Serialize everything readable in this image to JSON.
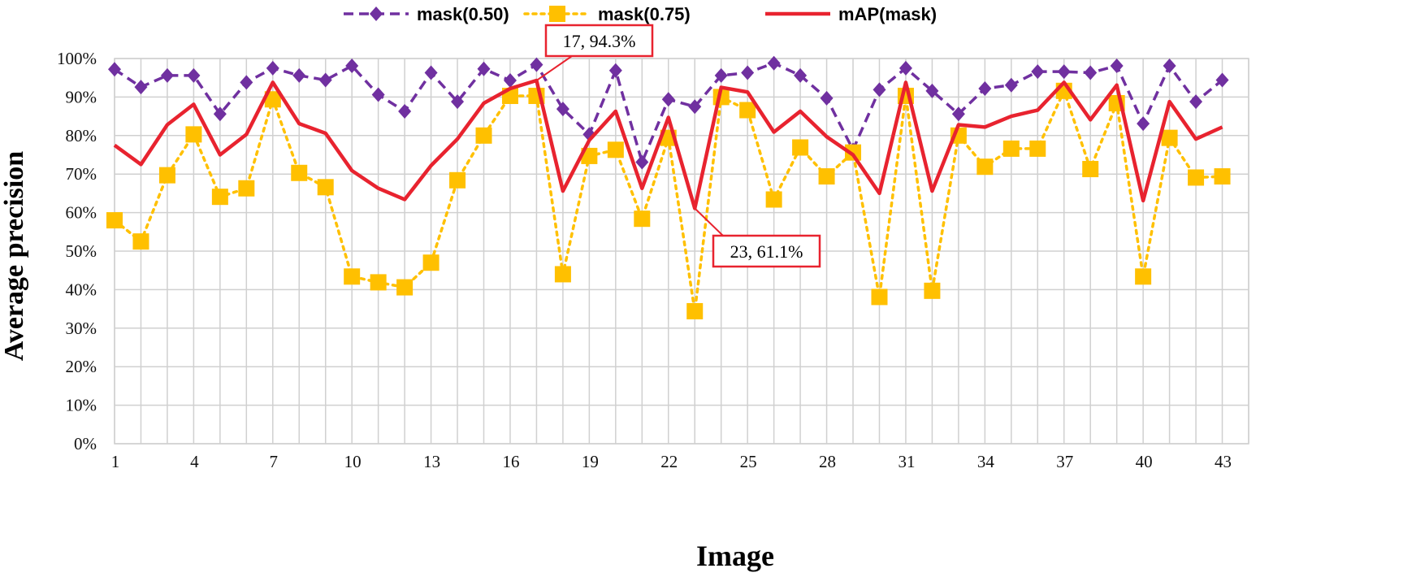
{
  "chart_data": {
    "type": "line",
    "title": "",
    "xlabel": "Image",
    "ylabel": "Average precision",
    "ylim": [
      0,
      100
    ],
    "y_ticks": [
      "0%",
      "10%",
      "20%",
      "30%",
      "40%",
      "50%",
      "60%",
      "70%",
      "80%",
      "90%",
      "100%"
    ],
    "x": [
      1,
      2,
      3,
      4,
      5,
      6,
      7,
      8,
      9,
      10,
      11,
      12,
      13,
      14,
      15,
      16,
      17,
      18,
      19,
      20,
      21,
      22,
      23,
      24,
      25,
      26,
      27,
      28,
      29,
      30,
      31,
      32,
      33,
      34,
      35,
      36,
      37,
      38,
      39,
      40,
      41,
      42,
      43
    ],
    "x_ticks": [
      "1",
      "4",
      "7",
      "10",
      "13",
      "16",
      "19",
      "22",
      "25",
      "28",
      "31",
      "34",
      "37",
      "40",
      "43"
    ],
    "grid": true,
    "legend_position": "top",
    "series": [
      {
        "name": "mask(0.50)",
        "color": "#7030A0",
        "style": "dashed",
        "marker": "diamond",
        "values": [
          97.2,
          92.6,
          95.6,
          95.6,
          85.6,
          93.8,
          97.5,
          95.6,
          94.4,
          98.1,
          90.6,
          86.3,
          96.3,
          88.8,
          97.3,
          94.3,
          98.4,
          86.9,
          80.3,
          96.9,
          73.1,
          89.4,
          87.5,
          95.6,
          96.3,
          98.8,
          95.6,
          89.7,
          76.3,
          91.9,
          97.5,
          91.6,
          85.6,
          92.2,
          93.1,
          96.6,
          96.6,
          96.3,
          98.1,
          83.1,
          98.1,
          88.8,
          94.4
        ]
      },
      {
        "name": "mask(0.75)",
        "color": "#FFC000",
        "style": "dotted",
        "marker": "square",
        "values": [
          58.0,
          52.5,
          69.7,
          80.3,
          64.1,
          66.3,
          89.4,
          70.3,
          66.6,
          43.4,
          41.9,
          40.6,
          47.0,
          68.4,
          80.0,
          90.3,
          90.3,
          44.0,
          74.7,
          76.3,
          58.4,
          79.4,
          34.4,
          90.0,
          86.6,
          63.4,
          76.9,
          69.4,
          75.6,
          38.1,
          90.3,
          39.7,
          80.0,
          71.9,
          76.6,
          76.6,
          91.6,
          71.3,
          88.4,
          43.4,
          79.4,
          69.1,
          69.4
        ]
      },
      {
        "name": "mAP(mask)",
        "color": "#E8232F",
        "style": "solid",
        "marker": "none",
        "values": [
          77.5,
          72.5,
          82.8,
          88.1,
          75.0,
          80.3,
          93.8,
          83.1,
          80.6,
          70.9,
          66.3,
          63.4,
          72.2,
          79.1,
          88.4,
          92.2,
          94.3,
          65.6,
          78.8,
          86.3,
          66.3,
          84.7,
          61.1,
          92.5,
          91.3,
          80.9,
          86.3,
          79.7,
          75.0,
          65.0,
          93.8,
          65.6,
          82.8,
          82.2,
          85.0,
          86.6,
          93.8,
          84.1,
          93.1,
          63.1,
          88.8,
          79.1,
          82.2
        ]
      }
    ],
    "annotations": [
      {
        "text": "17, 94.3%",
        "x": 17,
        "y": 94.3
      },
      {
        "text": "23, 61.1%",
        "x": 23,
        "y": 61.1
      }
    ]
  }
}
